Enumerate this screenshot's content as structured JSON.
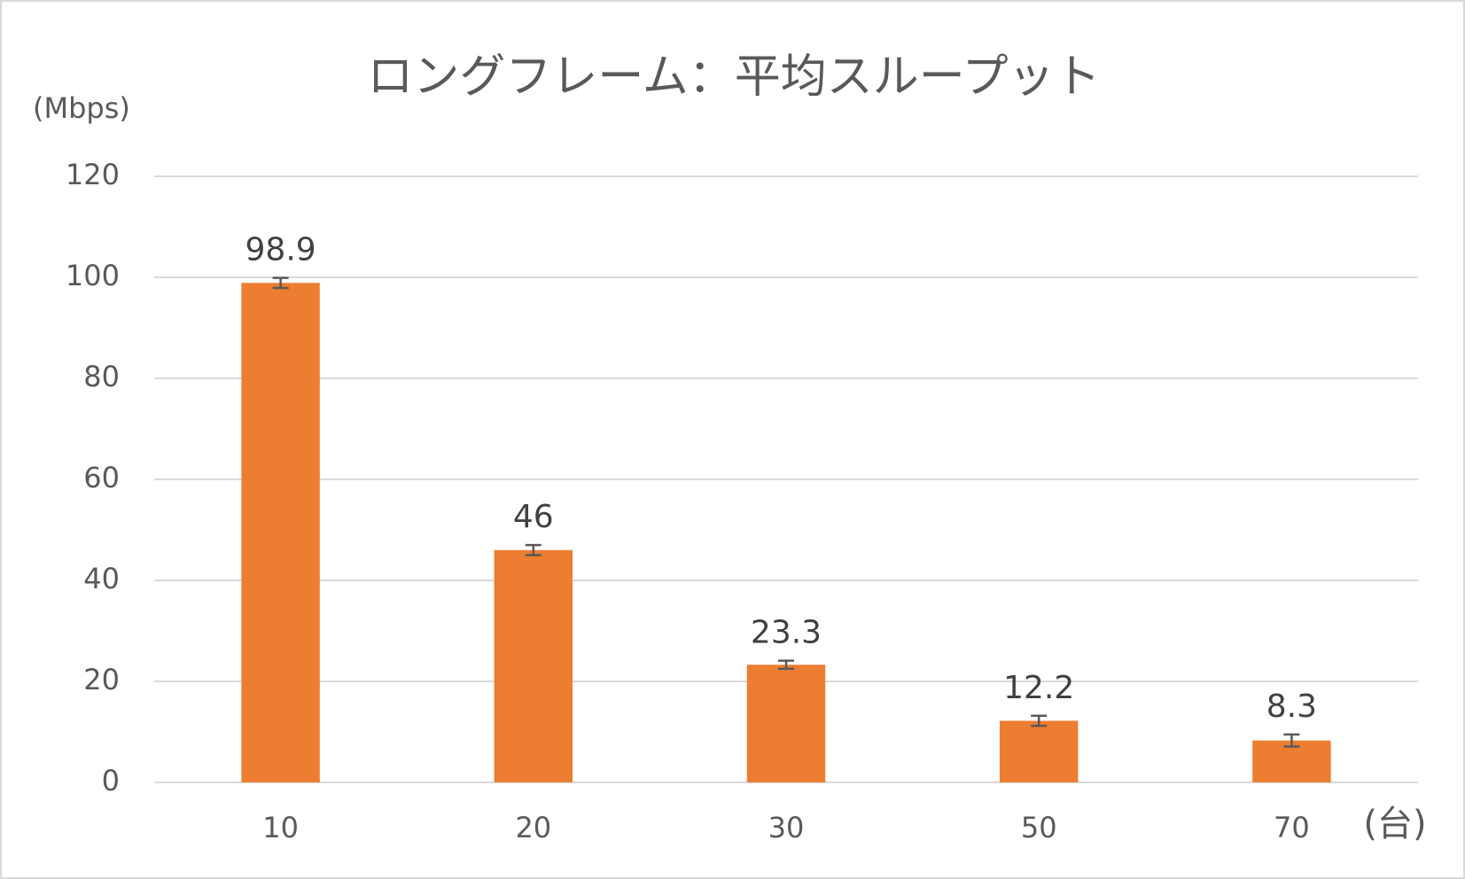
{
  "chart_data": {
    "type": "bar",
    "title": "ロングフレーム：平均スループット",
    "y_label": "(Mbps)",
    "x_label": "(台)",
    "categories": [
      "10",
      "20",
      "30",
      "50",
      "70"
    ],
    "values": [
      98.9,
      46,
      23.3,
      12.2,
      8.3
    ],
    "errors": [
      1,
      1,
      0.8,
      1,
      1.2
    ],
    "color": "#ed7d31",
    "error_color": "#595959",
    "ylim": [
      0,
      120
    ],
    "yticks": [
      0,
      20,
      40,
      60,
      80,
      100,
      120
    ],
    "grid": true
  }
}
